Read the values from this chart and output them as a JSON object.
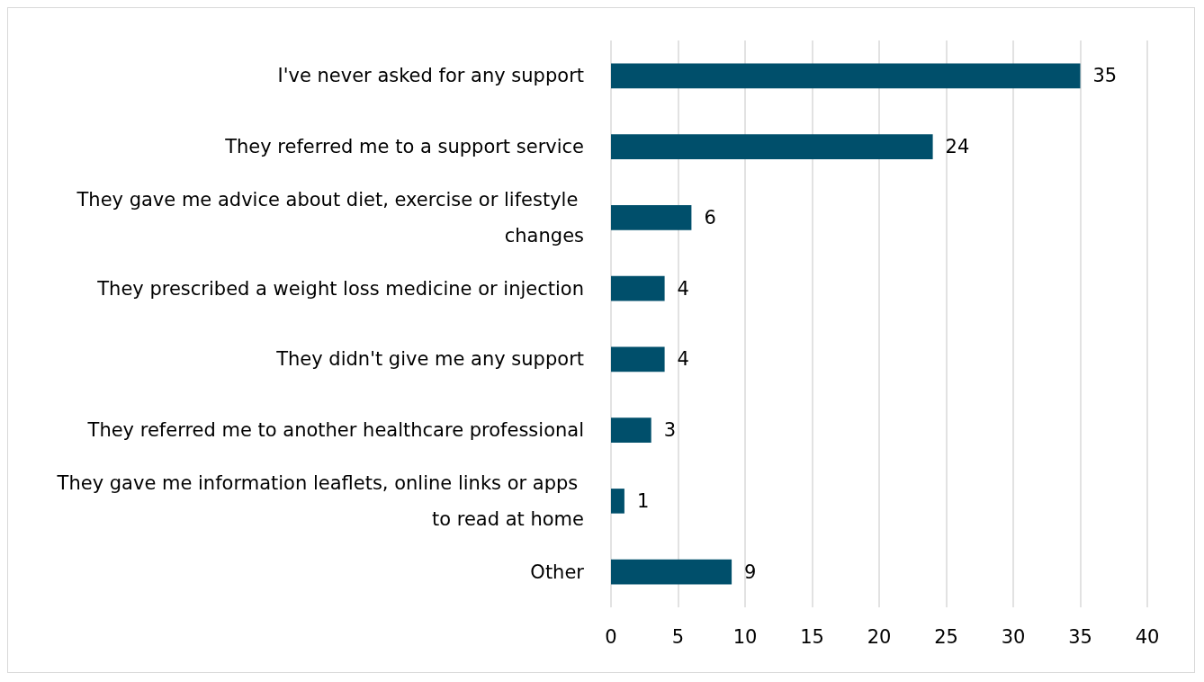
{
  "chart_data": {
    "type": "bar",
    "orientation": "horizontal",
    "categories": [
      "I've never asked for any support",
      "They referred me to a support service",
      "They gave me advice about diet, exercise or lifestyle changes",
      "They prescribed a weight loss medicine or injection",
      "They didn't give me any support",
      "They referred me to another healthcare professional",
      "They gave me information leaflets, online links or apps to read at home",
      "Other"
    ],
    "values": [
      35,
      24,
      6,
      4,
      4,
      3,
      1,
      9
    ],
    "color": "#004f6b",
    "xlim": [
      0,
      40
    ],
    "xticks": [
      0,
      5,
      10,
      15,
      20,
      25,
      30,
      35,
      40
    ],
    "grid": "x",
    "data_labels": true
  }
}
